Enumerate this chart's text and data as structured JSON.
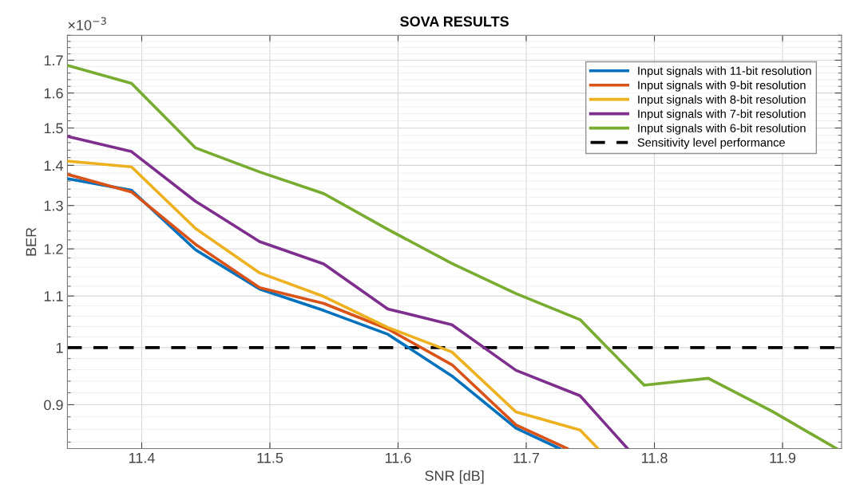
{
  "chart_data": {
    "type": "line",
    "title": "SOVA RESULTS",
    "xlabel": "SNR [dB]",
    "ylabel": "BER",
    "annotations": [
      "×10$^{−3}$"
    ],
    "series": [
      {
        "name": "Input signals with 11-bit resolution",
        "color": "#0072bd",
        "x": [
          11.342,
          11.392,
          11.442,
          11.492,
          11.542,
          11.592,
          11.642,
          11.692,
          11.726
        ],
        "values": [
          1.366,
          1.337,
          1.198,
          1.114,
          1.071,
          1.025,
          0.949,
          0.862,
          0.83
        ]
      },
      {
        "name": "Input signals with 9-bit resolution",
        "color": "#d95319",
        "x": [
          11.342,
          11.392,
          11.442,
          11.492,
          11.542,
          11.592,
          11.642,
          11.692,
          11.732
        ],
        "values": [
          1.377,
          1.333,
          1.21,
          1.117,
          1.085,
          1.035,
          0.969,
          0.867,
          0.83
        ]
      },
      {
        "name": "Input signals with 8-bit resolution",
        "color": "#edb120",
        "x": [
          11.342,
          11.392,
          11.442,
          11.492,
          11.542,
          11.592,
          11.642,
          11.692,
          11.742,
          11.756
        ],
        "values": [
          1.411,
          1.396,
          1.246,
          1.148,
          1.099,
          1.038,
          0.992,
          0.888,
          0.859,
          0.83
        ]
      },
      {
        "name": "Input signals with 7-bit resolution",
        "color": "#7e2f8e",
        "x": [
          11.342,
          11.392,
          11.442,
          11.492,
          11.542,
          11.592,
          11.642,
          11.692,
          11.742,
          11.779
        ],
        "values": [
          1.477,
          1.436,
          1.31,
          1.216,
          1.167,
          1.074,
          1.043,
          0.959,
          0.915,
          0.83
        ]
      },
      {
        "name": "Input signals with 6-bit resolution",
        "color": "#77ac30",
        "x": [
          11.342,
          11.392,
          11.442,
          11.492,
          11.542,
          11.592,
          11.642,
          11.692,
          11.742,
          11.792,
          11.842,
          11.892,
          11.942
        ],
        "values": [
          1.684,
          1.629,
          1.446,
          1.383,
          1.329,
          1.244,
          1.168,
          1.105,
          1.053,
          0.933,
          0.945,
          0.889,
          0.83
        ]
      }
    ],
    "ref_lines": [
      {
        "axis": "y",
        "value": 1,
        "label": "Sensitivity level performance",
        "color": "#000000",
        "line_style": "dashed"
      }
    ],
    "log": "y",
    "xlim": [
      11.342,
      11.946
    ],
    "ylim": [
      0.83,
      1.78
    ],
    "xticks": [
      11.4,
      11.5,
      11.6,
      11.7,
      11.8,
      11.9
    ],
    "yticks": [
      0.9,
      1,
      1.1,
      1.2,
      1.3,
      1.4,
      1.5,
      1.6,
      1.7
    ],
    "grid": true,
    "legend": "top right",
    "marker": "none",
    "line_style": "solid"
  }
}
